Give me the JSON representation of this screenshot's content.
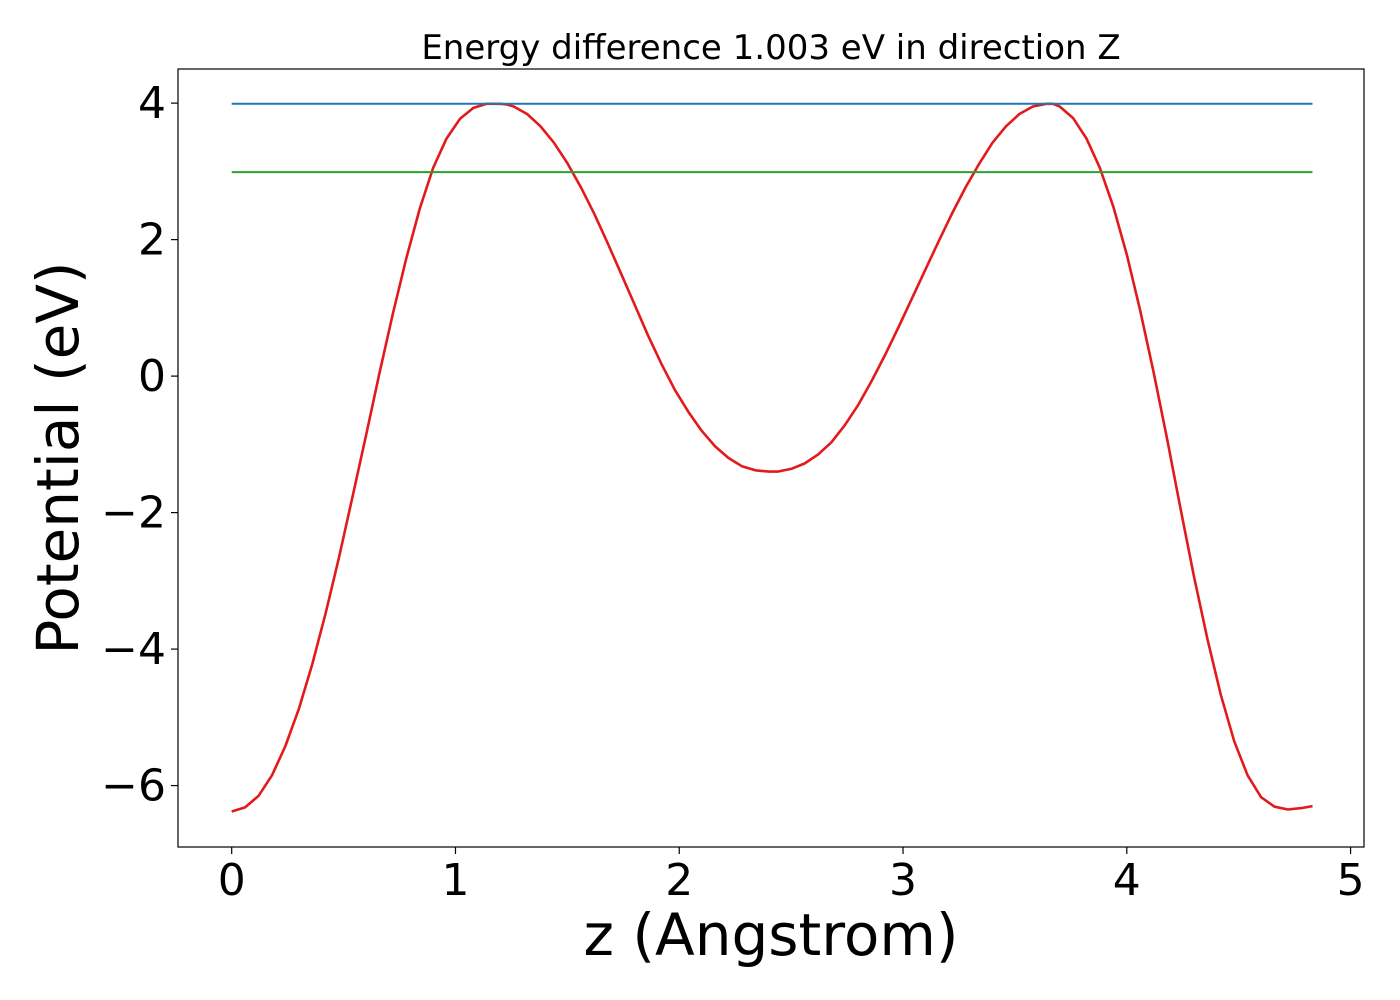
{
  "chart_data": {
    "type": "line",
    "title": "Energy difference 1.003 eV in direction Z",
    "xlabel": "z (Angstrom)",
    "ylabel": "Potential (eV)",
    "xlim": [
      -0.24,
      5.06
    ],
    "ylim": [
      -6.9,
      4.5
    ],
    "xticks": [
      0,
      1,
      2,
      3,
      4,
      5
    ],
    "xtick_labels": [
      "0",
      "1",
      "2",
      "3",
      "4",
      "5"
    ],
    "yticks": [
      -6,
      -4,
      -2,
      0,
      2,
      4
    ],
    "ytick_labels": [
      "−6",
      "−4",
      "−2",
      "0",
      "2",
      "4"
    ],
    "grid": false,
    "legend": false,
    "series": [
      {
        "color": "#e31a1c",
        "x": [
          0.0,
          0.06,
          0.12,
          0.18,
          0.24,
          0.3,
          0.36,
          0.42,
          0.48,
          0.54,
          0.6,
          0.66,
          0.72,
          0.78,
          0.84,
          0.9,
          0.96,
          1.02,
          1.08,
          1.14,
          1.2,
          1.23,
          1.26,
          1.32,
          1.38,
          1.44,
          1.5,
          1.56,
          1.62,
          1.68,
          1.74,
          1.8,
          1.86,
          1.92,
          1.98,
          2.04,
          2.1,
          2.16,
          2.22,
          2.28,
          2.34,
          2.4,
          2.44,
          2.5,
          2.56,
          2.62,
          2.68,
          2.74,
          2.8,
          2.86,
          2.92,
          2.98,
          3.04,
          3.1,
          3.16,
          3.22,
          3.28,
          3.34,
          3.4,
          3.46,
          3.52,
          3.58,
          3.64,
          3.67,
          3.7,
          3.76,
          3.82,
          3.88,
          3.94,
          4.0,
          4.06,
          4.12,
          4.18,
          4.24,
          4.3,
          4.36,
          4.42,
          4.48,
          4.54,
          4.6,
          4.66,
          4.72,
          4.78,
          4.83
        ],
        "y": [
          -6.38,
          -6.32,
          -6.15,
          -5.85,
          -5.42,
          -4.88,
          -4.22,
          -3.47,
          -2.65,
          -1.77,
          -0.87,
          0.04,
          0.91,
          1.72,
          2.45,
          3.05,
          3.48,
          3.77,
          3.93,
          3.99,
          3.99,
          3.98,
          3.95,
          3.84,
          3.66,
          3.42,
          3.12,
          2.77,
          2.38,
          1.95,
          1.5,
          1.05,
          0.6,
          0.18,
          -0.2,
          -0.52,
          -0.8,
          -1.03,
          -1.2,
          -1.32,
          -1.38,
          -1.4,
          -1.4,
          -1.36,
          -1.28,
          -1.15,
          -0.97,
          -0.72,
          -0.42,
          -0.07,
          0.31,
          0.72,
          1.14,
          1.56,
          1.98,
          2.39,
          2.77,
          3.11,
          3.42,
          3.66,
          3.84,
          3.95,
          3.99,
          3.99,
          3.95,
          3.78,
          3.48,
          3.05,
          2.48,
          1.78,
          0.96,
          0.05,
          -0.92,
          -1.94,
          -2.93,
          -3.85,
          -4.67,
          -5.35,
          -5.85,
          -6.17,
          -6.31,
          -6.35,
          -6.33,
          -6.3
        ]
      },
      {
        "color": "#1f77b4",
        "x": [
          0.0,
          4.83
        ],
        "y": [
          3.99,
          3.99
        ]
      },
      {
        "color": "#2ca02c",
        "x": [
          0.0,
          4.83
        ],
        "y": [
          2.99,
          2.99
        ]
      }
    ]
  }
}
